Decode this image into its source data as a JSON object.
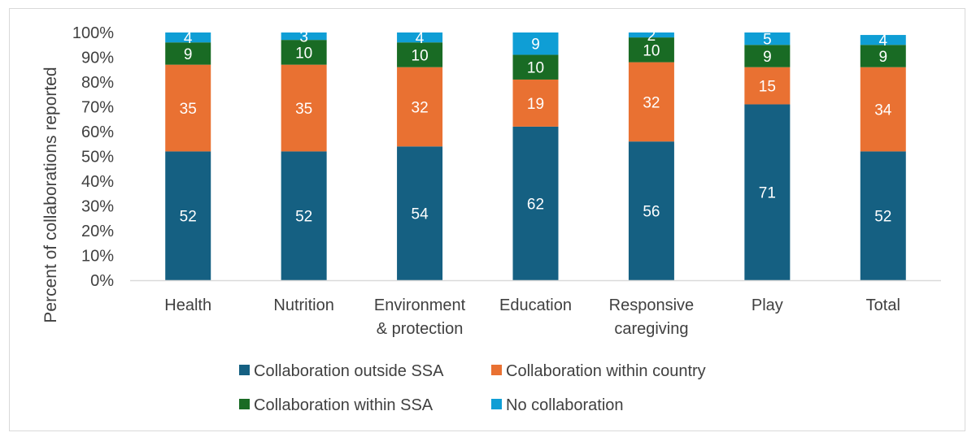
{
  "chart_data": {
    "type": "bar",
    "stacked": true,
    "percent": true,
    "categories": [
      [
        "Health"
      ],
      [
        "Nutrition"
      ],
      [
        "Environment",
        "& protection"
      ],
      [
        "Education"
      ],
      [
        "Responsive",
        "caregiving"
      ],
      [
        "Play"
      ],
      [
        "Total"
      ]
    ],
    "series": [
      {
        "name": "Collaboration outside SSA",
        "color": "#156082",
        "values": [
          52,
          52,
          54,
          62,
          56,
          71,
          52
        ]
      },
      {
        "name": "Collaboration within country",
        "color": "#E97132",
        "values": [
          35,
          35,
          32,
          19,
          32,
          15,
          34
        ]
      },
      {
        "name": "Collaboration within SSA",
        "color": "#196B24",
        "values": [
          9,
          10,
          10,
          10,
          10,
          9,
          9
        ]
      },
      {
        "name": "No collaboration",
        "color": "#0F9ED5",
        "values": [
          4,
          3,
          4,
          9,
          2,
          5,
          4
        ]
      }
    ],
    "ylabel": "Percent of collaborations reported",
    "ylim": [
      0,
      100
    ],
    "yticks": [
      "0%",
      "10%",
      "20%",
      "30%",
      "40%",
      "50%",
      "60%",
      "70%",
      "80%",
      "90%",
      "100%"
    ],
    "grid": false,
    "legend": "bottom"
  }
}
